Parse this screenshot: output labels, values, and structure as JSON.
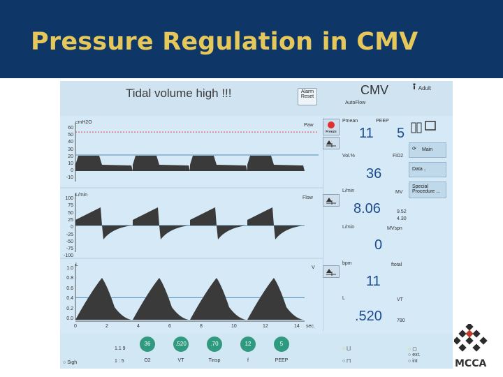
{
  "slide": {
    "title": "Pressure Regulation in CMV"
  },
  "ventilator": {
    "alarm_text": "Tidal volume high !!!",
    "alarm_reset_label": "Alarm\nReset",
    "mode": "CMV",
    "mode_sub": "AutoFlow",
    "patient_type": "Adult",
    "pressure_panel": {
      "unit": "cmH2O",
      "param": "Paw",
      "ticks": [
        "60",
        "50",
        "40",
        "30",
        "20",
        "10",
        "0",
        "-10"
      ]
    },
    "flow_panel": {
      "unit": "L/min",
      "param": "Flow",
      "ticks": [
        "100",
        "75",
        "50",
        "25",
        "0",
        "-25",
        "-50",
        "-75",
        "-100"
      ]
    },
    "volume_panel": {
      "unit": "L",
      "param": "V",
      "ticks": [
        "1.0",
        "0.8",
        "0.6",
        "0.4",
        "0.2",
        "0.0"
      ]
    },
    "time_axis": {
      "ticks": [
        "0",
        "2",
        "4",
        "6",
        "8",
        "10",
        "12",
        "14"
      ],
      "unit": "sec."
    },
    "values": {
      "pmean_label": "Pmean",
      "peep_label": "PEEP",
      "pmean": "11",
      "peep": "5",
      "fio2_left": "Vol.%",
      "fio2_label": "FiO2",
      "fio2": "36",
      "mv_left": "L/min",
      "mv_label": "MV",
      "mv": "8.06",
      "mv_side_hi": "9.52",
      "mv_side_lo": "4.30",
      "mvspn_left": "L/min",
      "mvspn_label": "MVspn",
      "mvspn": "0",
      "ftotal_left": "bpm",
      "ftotal_label": "ftotal",
      "ftotal": "11",
      "vt_left": "L",
      "vt_label": "VT",
      "vt": ".520",
      "vt_side": "780"
    },
    "side_menu": {
      "freeze_label": "Freeze",
      "main_label": "Main",
      "data_label": "Data ..",
      "special_label": "Special\nProcedure ..."
    },
    "bottom": {
      "knobs": [
        {
          "value": "36",
          "label": "O2"
        },
        {
          "value": ".520",
          "label": "VT"
        },
        {
          "value": ".70",
          "label": "Tinsp"
        },
        {
          "value": "12",
          "label": "f"
        },
        {
          "value": "5",
          "label": "PEEP"
        }
      ],
      "left_hi": "1.1 9",
      "left_lo": "1 : 5",
      "sigh_label": "Sigh",
      "right_ext": "ext.",
      "right_int": "int"
    },
    "colors": {
      "waveform": "#3a3a3a",
      "alarm_limit_line": "#e04040",
      "baseline": "#4a8fb8",
      "knob": "#2f9a80",
      "freeze_button": "#e03030",
      "header_band": "#0e3768",
      "title_text": "#e6c75a"
    }
  },
  "logo": {
    "text": "MCCA"
  }
}
